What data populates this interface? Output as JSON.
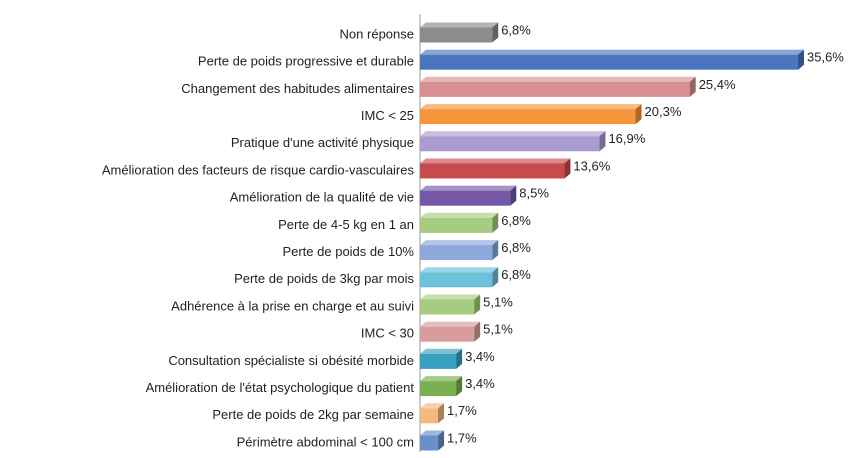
{
  "chart_data": {
    "type": "barh",
    "categories": [
      "Non réponse",
      "Perte de poids progressive et durable",
      "Changement des habitudes alimentaires",
      "IMC < 25",
      "Pratique d'une activité physique",
      "Amélioration des facteurs de risque cardio-vasculaires",
      "Amélioration de  la qualité de vie",
      "Perte de 4-5 kg en 1 an",
      "Perte de poids de 10%",
      "Perte de poids de 3kg par mois",
      "Adhérence à la prise en charge et au suivi",
      "IMC < 30",
      "Consultation spécialiste si obésité morbide",
      "Amélioration de l'état psychologique du patient",
      "Perte de poids de 2kg par semaine",
      "Périmètre abdominal < 100 cm"
    ],
    "values": [
      6.8,
      35.6,
      25.4,
      20.3,
      16.9,
      13.6,
      8.5,
      6.8,
      6.8,
      6.8,
      5.1,
      5.1,
      3.4,
      3.4,
      1.7,
      1.7
    ],
    "value_labels": [
      "6,8%",
      "35,6%",
      "25,4%",
      "20,3%",
      "16,9%",
      "13,6%",
      "8,5%",
      "6,8%",
      "6,8%",
      "6,8%",
      "5,1%",
      "5,1%",
      "3,4%",
      "3,4%",
      "1,7%",
      "1,7%"
    ],
    "colors": [
      "#8c8c8c",
      "#4a76c0",
      "#d98f8f",
      "#f5963c",
      "#a99bd0",
      "#c84a4a",
      "#7558a8",
      "#a6cc80",
      "#8ca8dc",
      "#6cc0d8",
      "#a6cc80",
      "#d99c9c",
      "#3aa0c0",
      "#7ab050",
      "#f4b880",
      "#6a90cc"
    ]
  }
}
